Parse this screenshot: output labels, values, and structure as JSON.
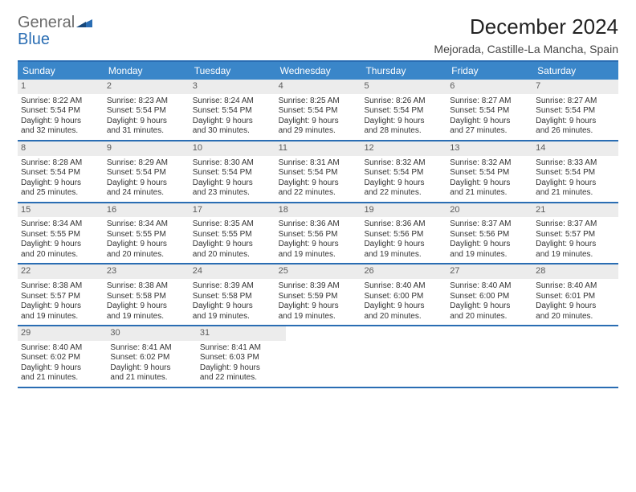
{
  "logo": {
    "word1": "General",
    "word2": "Blue"
  },
  "title": "December 2024",
  "subtitle": "Mejorada, Castille-La Mancha, Spain",
  "calendar": {
    "day_headers": [
      "Sunday",
      "Monday",
      "Tuesday",
      "Wednesday",
      "Thursday",
      "Friday",
      "Saturday"
    ],
    "header_bg": "#3a86c9",
    "border_color": "#2a6db3",
    "datenum_bg": "#ececec",
    "cell_fontsize": 10,
    "weeks": [
      [
        {
          "date": "1",
          "sunrise": "Sunrise: 8:22 AM",
          "sunset": "Sunset: 5:54 PM",
          "day1": "Daylight: 9 hours",
          "day2": "and 32 minutes."
        },
        {
          "date": "2",
          "sunrise": "Sunrise: 8:23 AM",
          "sunset": "Sunset: 5:54 PM",
          "day1": "Daylight: 9 hours",
          "day2": "and 31 minutes."
        },
        {
          "date": "3",
          "sunrise": "Sunrise: 8:24 AM",
          "sunset": "Sunset: 5:54 PM",
          "day1": "Daylight: 9 hours",
          "day2": "and 30 minutes."
        },
        {
          "date": "4",
          "sunrise": "Sunrise: 8:25 AM",
          "sunset": "Sunset: 5:54 PM",
          "day1": "Daylight: 9 hours",
          "day2": "and 29 minutes."
        },
        {
          "date": "5",
          "sunrise": "Sunrise: 8:26 AM",
          "sunset": "Sunset: 5:54 PM",
          "day1": "Daylight: 9 hours",
          "day2": "and 28 minutes."
        },
        {
          "date": "6",
          "sunrise": "Sunrise: 8:27 AM",
          "sunset": "Sunset: 5:54 PM",
          "day1": "Daylight: 9 hours",
          "day2": "and 27 minutes."
        },
        {
          "date": "7",
          "sunrise": "Sunrise: 8:27 AM",
          "sunset": "Sunset: 5:54 PM",
          "day1": "Daylight: 9 hours",
          "day2": "and 26 minutes."
        }
      ],
      [
        {
          "date": "8",
          "sunrise": "Sunrise: 8:28 AM",
          "sunset": "Sunset: 5:54 PM",
          "day1": "Daylight: 9 hours",
          "day2": "and 25 minutes."
        },
        {
          "date": "9",
          "sunrise": "Sunrise: 8:29 AM",
          "sunset": "Sunset: 5:54 PM",
          "day1": "Daylight: 9 hours",
          "day2": "and 24 minutes."
        },
        {
          "date": "10",
          "sunrise": "Sunrise: 8:30 AM",
          "sunset": "Sunset: 5:54 PM",
          "day1": "Daylight: 9 hours",
          "day2": "and 23 minutes."
        },
        {
          "date": "11",
          "sunrise": "Sunrise: 8:31 AM",
          "sunset": "Sunset: 5:54 PM",
          "day1": "Daylight: 9 hours",
          "day2": "and 22 minutes."
        },
        {
          "date": "12",
          "sunrise": "Sunrise: 8:32 AM",
          "sunset": "Sunset: 5:54 PM",
          "day1": "Daylight: 9 hours",
          "day2": "and 22 minutes."
        },
        {
          "date": "13",
          "sunrise": "Sunrise: 8:32 AM",
          "sunset": "Sunset: 5:54 PM",
          "day1": "Daylight: 9 hours",
          "day2": "and 21 minutes."
        },
        {
          "date": "14",
          "sunrise": "Sunrise: 8:33 AM",
          "sunset": "Sunset: 5:54 PM",
          "day1": "Daylight: 9 hours",
          "day2": "and 21 minutes."
        }
      ],
      [
        {
          "date": "15",
          "sunrise": "Sunrise: 8:34 AM",
          "sunset": "Sunset: 5:55 PM",
          "day1": "Daylight: 9 hours",
          "day2": "and 20 minutes."
        },
        {
          "date": "16",
          "sunrise": "Sunrise: 8:34 AM",
          "sunset": "Sunset: 5:55 PM",
          "day1": "Daylight: 9 hours",
          "day2": "and 20 minutes."
        },
        {
          "date": "17",
          "sunrise": "Sunrise: 8:35 AM",
          "sunset": "Sunset: 5:55 PM",
          "day1": "Daylight: 9 hours",
          "day2": "and 20 minutes."
        },
        {
          "date": "18",
          "sunrise": "Sunrise: 8:36 AM",
          "sunset": "Sunset: 5:56 PM",
          "day1": "Daylight: 9 hours",
          "day2": "and 19 minutes."
        },
        {
          "date": "19",
          "sunrise": "Sunrise: 8:36 AM",
          "sunset": "Sunset: 5:56 PM",
          "day1": "Daylight: 9 hours",
          "day2": "and 19 minutes."
        },
        {
          "date": "20",
          "sunrise": "Sunrise: 8:37 AM",
          "sunset": "Sunset: 5:56 PM",
          "day1": "Daylight: 9 hours",
          "day2": "and 19 minutes."
        },
        {
          "date": "21",
          "sunrise": "Sunrise: 8:37 AM",
          "sunset": "Sunset: 5:57 PM",
          "day1": "Daylight: 9 hours",
          "day2": "and 19 minutes."
        }
      ],
      [
        {
          "date": "22",
          "sunrise": "Sunrise: 8:38 AM",
          "sunset": "Sunset: 5:57 PM",
          "day1": "Daylight: 9 hours",
          "day2": "and 19 minutes."
        },
        {
          "date": "23",
          "sunrise": "Sunrise: 8:38 AM",
          "sunset": "Sunset: 5:58 PM",
          "day1": "Daylight: 9 hours",
          "day2": "and 19 minutes."
        },
        {
          "date": "24",
          "sunrise": "Sunrise: 8:39 AM",
          "sunset": "Sunset: 5:58 PM",
          "day1": "Daylight: 9 hours",
          "day2": "and 19 minutes."
        },
        {
          "date": "25",
          "sunrise": "Sunrise: 8:39 AM",
          "sunset": "Sunset: 5:59 PM",
          "day1": "Daylight: 9 hours",
          "day2": "and 19 minutes."
        },
        {
          "date": "26",
          "sunrise": "Sunrise: 8:40 AM",
          "sunset": "Sunset: 6:00 PM",
          "day1": "Daylight: 9 hours",
          "day2": "and 20 minutes."
        },
        {
          "date": "27",
          "sunrise": "Sunrise: 8:40 AM",
          "sunset": "Sunset: 6:00 PM",
          "day1": "Daylight: 9 hours",
          "day2": "and 20 minutes."
        },
        {
          "date": "28",
          "sunrise": "Sunrise: 8:40 AM",
          "sunset": "Sunset: 6:01 PM",
          "day1": "Daylight: 9 hours",
          "day2": "and 20 minutes."
        }
      ],
      [
        {
          "date": "29",
          "sunrise": "Sunrise: 8:40 AM",
          "sunset": "Sunset: 6:02 PM",
          "day1": "Daylight: 9 hours",
          "day2": "and 21 minutes."
        },
        {
          "date": "30",
          "sunrise": "Sunrise: 8:41 AM",
          "sunset": "Sunset: 6:02 PM",
          "day1": "Daylight: 9 hours",
          "day2": "and 21 minutes."
        },
        {
          "date": "31",
          "sunrise": "Sunrise: 8:41 AM",
          "sunset": "Sunset: 6:03 PM",
          "day1": "Daylight: 9 hours",
          "day2": "and 22 minutes."
        },
        null,
        null,
        null,
        null
      ]
    ]
  }
}
